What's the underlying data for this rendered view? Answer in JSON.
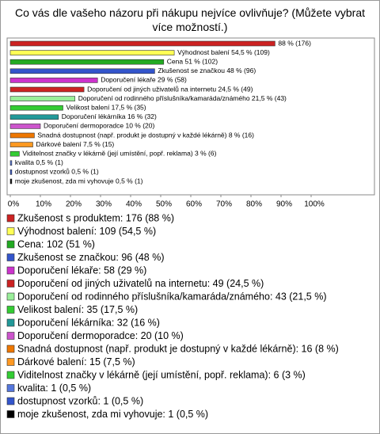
{
  "chart_data": {
    "type": "bar",
    "orientation": "horizontal",
    "title": "Co vás dle vašeho názoru při nákupu nejvíce ovlivňuje? (Můžete vybrat více možností.)",
    "categories": [
      "Zkušenost s produktem",
      "Výhodnost balení",
      "Cena",
      "Zkušenost se značkou",
      "Doporučení lékaře",
      "Doporučení od jiných uživatelů na internetu",
      "Doporučení od rodinného příslušníka/kamaráda/známého",
      "Velikost balení",
      "Doporučení lékárníka",
      "Doporučení dermoporadce",
      "Snadná dostupnost (např. produkt je dostupný v každé lékárně)",
      "Dárkové balení",
      "Viditelnost značky v lékárně (její umístění, popř. reklama)",
      "kvalita",
      "dostupnost vzorků",
      "moje zkušenost, zda mi vyhovuje"
    ],
    "values": [
      88,
      54.5,
      51,
      48,
      29,
      24.5,
      21.5,
      17.5,
      16,
      10,
      8,
      7.5,
      3,
      0.5,
      0.5,
      0.5
    ],
    "value_labels": [
      "88 % (176)",
      "Výhodnost balení 54,5 % (109)",
      "Cena 51 % (102)",
      "Zkušenost se značkou 48 % (96)",
      "Doporučení lékaře 29 % (58)",
      "Doporučení od jiných uživatelů na internetu 24,5 % (49)",
      "Doporučení od rodinného příslušníka/kamaráda/známého 21,5 % (43)",
      "Velikost balení 17,5 % (35)",
      "Doporučení lékárníka 16 % (32)",
      "Doporučení dermoporadce 10 % (20)",
      "Snadná dostupnost (např. produkt je dostupný v každé lékárně) 8 % (16)",
      "Dárkové balení 7,5 % (15)",
      "Viditelnost značky v lékárně (její umístění, popř. reklama) 3 % (6)",
      "kvalita 0,5 % (1)",
      "dostupnost vzorků 0,5 % (1)",
      "moje zkušenost, zda mi vyhovuje 0,5 % (1)"
    ],
    "legend_labels": [
      "Zkušenost s produktem: 176 (88 %)",
      "Výhodnost balení: 109 (54,5 %)",
      "Cena: 102 (51 %)",
      "Zkušenost se značkou: 96 (48 %)",
      "Doporučení lékaře: 58 (29 %)",
      "Doporučení od jiných uživatelů na internetu: 49 (24,5 %)",
      "Doporučení od rodinného příslušníka/kamaráda/známého: 43 (21,5 %)",
      "Velikost balení: 35 (17,5 %)",
      "Doporučení lékárníka: 32 (16 %)",
      "Doporučení dermoporadce: 20 (10 %)",
      "Snadná dostupnost (např. produkt je dostupný v každé lékárně): 16 (8 %)",
      "Dárkové balení: 15 (7,5 %)",
      "Viditelnost značky v lékárně (její umístění, popř. reklama): 6 (3 %)",
      "kvalita: 1 (0,5 %)",
      "dostupnost vzorků: 1 (0,5 %)",
      "moje zkušenost, zda mi vyhovuje: 1 (0,5 %)"
    ],
    "colors": [
      "#cc2222",
      "#ffff55",
      "#22aa22",
      "#3355cc",
      "#cc33cc",
      "#cc2222",
      "#99ee99",
      "#33cc33",
      "#229999",
      "#cc55cc",
      "#ee7700",
      "#ff9922",
      "#33cc33",
      "#5577dd",
      "#3355cc",
      "#000000"
    ],
    "xlim": [
      0,
      100
    ],
    "xticks": [
      {
        "value": 0,
        "label": "0%"
      },
      {
        "value": 10,
        "label": "10%"
      },
      {
        "value": 20,
        "label": "20%"
      },
      {
        "value": 30,
        "label": "30%"
      },
      {
        "value": 40,
        "label": "40%"
      },
      {
        "value": 50,
        "label": "50%"
      },
      {
        "value": 60,
        "label": "60%"
      },
      {
        "value": 70,
        "label": "70%"
      },
      {
        "value": 80,
        "label": "80%"
      },
      {
        "value": 90,
        "label": "90%"
      },
      {
        "value": 100,
        "label": "100%"
      }
    ]
  }
}
